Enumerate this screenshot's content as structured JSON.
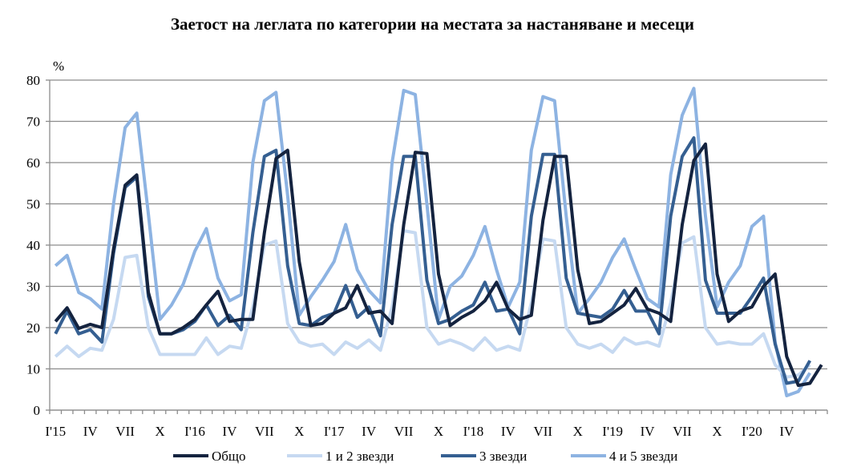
{
  "chart_data": {
    "type": "line",
    "title": "Заетост на леглата по категории на местата за настаняване и месеци",
    "ylabel": "%",
    "xlabel": "",
    "ylim": [
      0,
      80
    ],
    "yticks": [
      0,
      10,
      20,
      30,
      40,
      50,
      60,
      70,
      80
    ],
    "grid": true,
    "legend": "bottom",
    "xtick_labels": [
      "I'15",
      "IV",
      "VII",
      "X",
      "I'16",
      "IV",
      "VII",
      "X",
      "I'17",
      "IV",
      "VII",
      "X",
      "I'18",
      "IV",
      "VII",
      "X",
      "I'19",
      "IV",
      "VII",
      "X",
      "I'20",
      "IV"
    ],
    "x_period": "monthly, Jan 2015 – Jun 2020",
    "series": [
      {
        "name": "Общо",
        "color": "#14233f",
        "values": [
          21.5,
          24.8,
          19.8,
          20.8,
          20,
          39,
          54.5,
          57,
          28.5,
          18.5,
          18.5,
          20,
          22,
          25.5,
          28.8,
          21.5,
          22,
          22,
          43,
          61,
          63,
          36,
          20.5,
          21,
          23.5,
          24.8,
          30.2,
          23.5,
          24,
          21,
          45,
          62.5,
          62.2,
          33,
          20.5,
          22.5,
          24,
          26.5,
          31,
          24.5,
          22,
          23,
          46,
          61.5,
          61.5,
          34,
          21,
          21.5,
          23.5,
          25.5,
          29.5,
          24.5,
          23.5,
          21.5,
          45,
          60.5,
          64.5,
          33,
          21.5,
          24,
          25,
          30,
          33,
          13,
          6,
          6.5,
          11
        ]
      },
      {
        "name": "1 и 2 звезди",
        "color": "#c6d9f1",
        "values": [
          13,
          15.5,
          13,
          15,
          14.5,
          22,
          37,
          37.5,
          20,
          13.5,
          13.5,
          13.5,
          13.5,
          17.5,
          13.5,
          15.5,
          15,
          25,
          40,
          41,
          21,
          16.5,
          15.5,
          16,
          13.5,
          16.5,
          15,
          17,
          14.5,
          25,
          43.5,
          43,
          20,
          16,
          17,
          16,
          14.5,
          17.5,
          14.5,
          15.5,
          14.5,
          26,
          41.5,
          41,
          20,
          16,
          15,
          16,
          14,
          17.5,
          16,
          16.5,
          15.5,
          26,
          40.5,
          42,
          20,
          16,
          16.5,
          16,
          16,
          18.5,
          11,
          8,
          8.5,
          11
        ]
      },
      {
        "name": "3 звезди",
        "color": "#355f91",
        "values": [
          18.5,
          24,
          18.5,
          19.5,
          16.5,
          38,
          54,
          56.5,
          27.5,
          18.5,
          18.5,
          19.5,
          21.5,
          25.5,
          20.5,
          23,
          19.5,
          43,
          61.5,
          63,
          35,
          21,
          20.5,
          22.5,
          23.5,
          30.2,
          22.5,
          25,
          18,
          45,
          61.5,
          61.5,
          31.5,
          21,
          22,
          24,
          25.5,
          31,
          24,
          24.5,
          18.5,
          47,
          62,
          62,
          32,
          23.5,
          23,
          22.5,
          24.5,
          29,
          24,
          24,
          18.5,
          47,
          61.5,
          66,
          31.5,
          23.5,
          23.5,
          23.5,
          27.5,
          32,
          16,
          6.5,
          7,
          12
        ]
      },
      {
        "name": "4 и 5 звезди",
        "color": "#8db3e2",
        "values": [
          35,
          37.5,
          28.5,
          27,
          24.5,
          50,
          68.5,
          72,
          47.5,
          22,
          25.5,
          30.5,
          38.5,
          44,
          32,
          26.5,
          28,
          60,
          75,
          77,
          52,
          23,
          27.5,
          31.5,
          36,
          45,
          34,
          29,
          26,
          60,
          77.5,
          76.5,
          50,
          22,
          30,
          32.5,
          37.5,
          44.5,
          34,
          25,
          31,
          63,
          76,
          75,
          47,
          23.5,
          27,
          31,
          37,
          41.5,
          34,
          27,
          25,
          57,
          71.5,
          78,
          47,
          25,
          31,
          35,
          44.5,
          47,
          16.5,
          3.5,
          4.5,
          9
        ]
      }
    ]
  }
}
